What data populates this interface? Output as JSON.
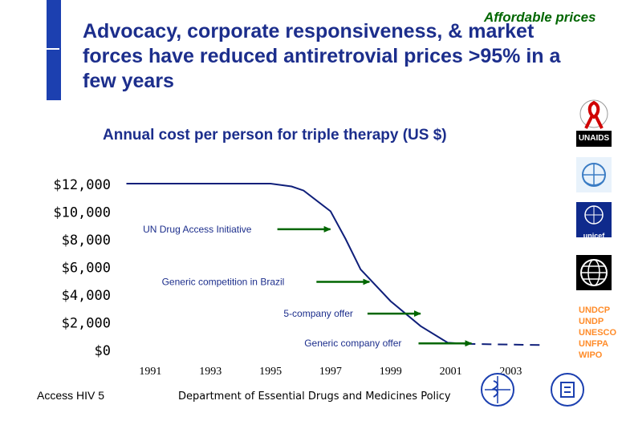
{
  "corner_label": "Affordable prices",
  "headline": "Advocacy, corporate responsiveness, & market forces have reduced antiretrovial prices >95% in a few years",
  "footer": {
    "left": "Access HIV 5",
    "center": "Department of Essential Drugs and Medicines Policy"
  },
  "sidebar": {
    "logos": [
      {
        "name": "red-ribbon",
        "label": ""
      },
      {
        "name": "unaids",
        "label": "UNAIDS"
      },
      {
        "name": "who",
        "label": ""
      },
      {
        "name": "unicef",
        "label": "unicef"
      },
      {
        "name": "world-bank",
        "label": ""
      }
    ],
    "agencies": [
      "UNDCP",
      "UNDP",
      "UNESCO",
      "UNFPA",
      "WIPO"
    ]
  },
  "colors": {
    "headline": "#1c2e8c",
    "accent_bar": "#1c40b0",
    "series": "#0f1f7a",
    "arrow": "#006600",
    "agency_text": "#ff8c2a"
  },
  "chart_data": {
    "type": "line",
    "title": "Annual cost per person for triple therapy (US $)",
    "xlabel": "",
    "ylabel": "",
    "xlim": [
      1990,
      2004.7
    ],
    "ylim": [
      0,
      12000
    ],
    "x_ticks": [
      1991,
      1993,
      1995,
      1997,
      1999,
      2001,
      2003
    ],
    "x_tick_labels": [
      "1991",
      "1993",
      "1995",
      "1997",
      "1999",
      "2001",
      "2003"
    ],
    "y_ticks": [
      0,
      2000,
      4000,
      6000,
      8000,
      10000,
      12000
    ],
    "y_tick_labels": [
      "$0",
      "$2,000",
      "$4,000",
      "$6,000",
      "$8,000",
      "$10,000",
      "$12,000"
    ],
    "series": [
      {
        "name": "Annual cost",
        "x": [
          1990.2,
          1991,
          1992,
          1993,
          1994,
          1995,
          1995.7,
          1996.1,
          1997,
          1997.5,
          1998,
          1999,
          2000,
          2000.9,
          2001.5,
          2002.5,
          2003.5,
          2004
        ],
        "y": [
          12000,
          12000,
          12000,
          12000,
          12000,
          12000,
          11800,
          11500,
          10000,
          8000,
          5800,
          3500,
          1700,
          500,
          420,
          380,
          350,
          330
        ],
        "dashed_from_x": 2001.5
      }
    ],
    "annotations": [
      {
        "text": "UN Drug Access Initiative",
        "x": 1997.1,
        "y": 8700
      },
      {
        "text": "Generic competition in Brazil",
        "x": 1998.4,
        "y": 4900
      },
      {
        "text": "5-company offer",
        "x": 2000.1,
        "y": 2600
      },
      {
        "text": "Generic company offer",
        "x": 2001.8,
        "y": 450
      }
    ]
  }
}
